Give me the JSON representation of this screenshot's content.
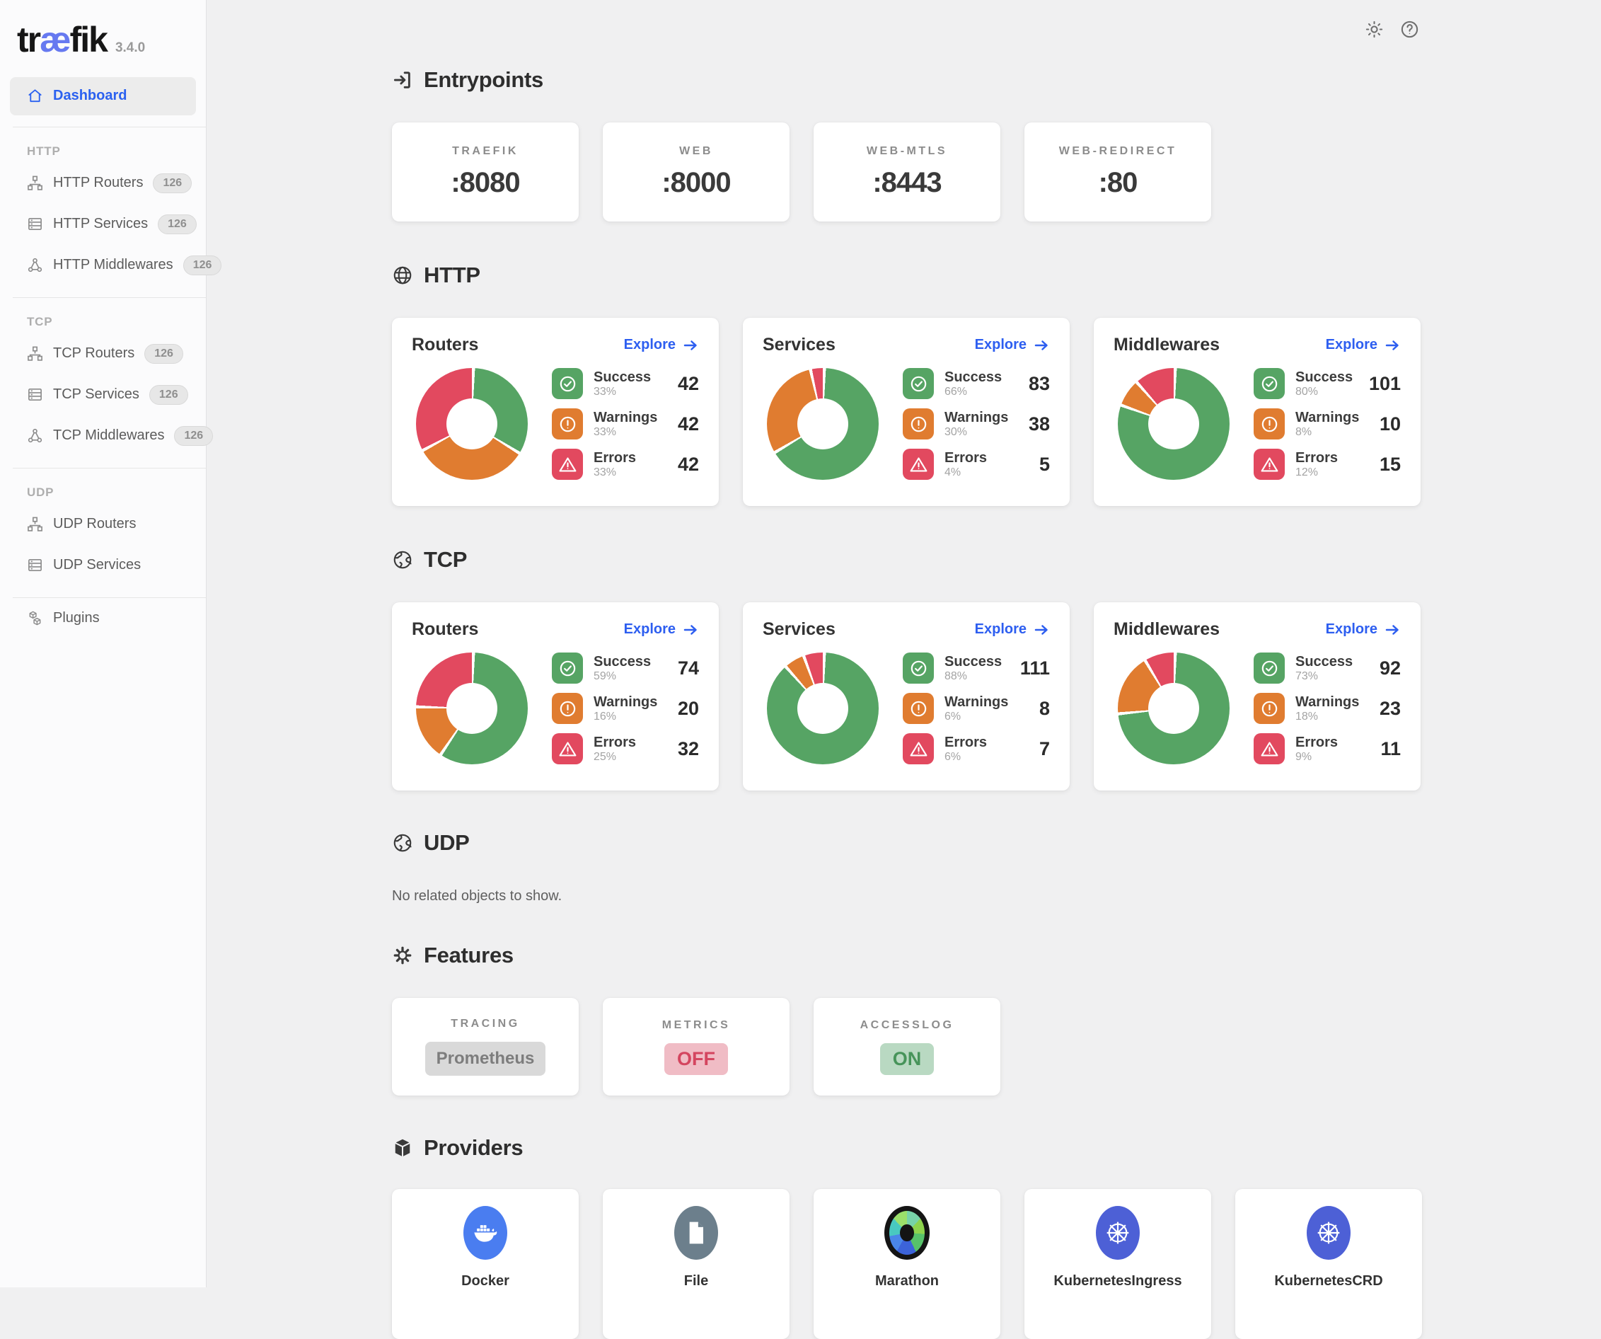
{
  "colors": {
    "success": "#56a464",
    "warning": "#e07c30",
    "error": "#e2495f",
    "accent": "#2d5ef0",
    "logo_accent": "#6679f0"
  },
  "app": {
    "brand_pre": "tr",
    "brand_ae": "æ",
    "brand_post": "fik",
    "version": "3.4.0"
  },
  "topbar": {
    "icons": [
      {
        "name": "theme-sun"
      },
      {
        "name": "help-circle"
      }
    ]
  },
  "sidebar": {
    "main_item": {
      "label": "Dashboard",
      "icon": "home"
    },
    "sections": [
      {
        "title": "HTTP",
        "items": [
          {
            "label": "HTTP Routers",
            "icon": "routers",
            "badge": "126"
          },
          {
            "label": "HTTP Services",
            "icon": "services",
            "badge": "126"
          },
          {
            "label": "HTTP Middlewares",
            "icon": "middlewares",
            "badge": "126"
          }
        ]
      },
      {
        "title": "TCP",
        "items": [
          {
            "label": "TCP Routers",
            "icon": "routers",
            "badge": "126"
          },
          {
            "label": "TCP Services",
            "icon": "services",
            "badge": "126"
          },
          {
            "label": "TCP Middlewares",
            "icon": "middlewares",
            "badge": "126"
          }
        ]
      },
      {
        "title": "UDP",
        "items": [
          {
            "label": "UDP Routers",
            "icon": "routers"
          },
          {
            "label": "UDP Services",
            "icon": "services"
          }
        ]
      }
    ],
    "bottom_items": [
      {
        "label": "Plugins",
        "icon": "plugins"
      }
    ]
  },
  "entrypoints": {
    "title": "Entrypoints",
    "icon": "login",
    "cards": [
      {
        "name": "TRAEFIK",
        "port": ":8080"
      },
      {
        "name": "WEB",
        "port": ":8000"
      },
      {
        "name": "WEB-MTLS",
        "port": ":8443"
      },
      {
        "name": "WEB-REDIRECT",
        "port": ":80"
      }
    ]
  },
  "protocol_sections": [
    {
      "title": "HTTP",
      "icon": "globe-wire",
      "cards": [
        {
          "title": "Routers",
          "explore_label": "Explore",
          "stats": [
            {
              "type": "success",
              "label": "Success",
              "percent": "33%",
              "pct": 33,
              "value": "42"
            },
            {
              "type": "warning",
              "label": "Warnings",
              "percent": "33%",
              "pct": 33,
              "value": "42"
            },
            {
              "type": "error",
              "label": "Errors",
              "percent": "33%",
              "pct": 33,
              "value": "42"
            }
          ]
        },
        {
          "title": "Services",
          "explore_label": "Explore",
          "stats": [
            {
              "type": "success",
              "label": "Success",
              "percent": "66%",
              "pct": 66,
              "value": "83"
            },
            {
              "type": "warning",
              "label": "Warnings",
              "percent": "30%",
              "pct": 30,
              "value": "38"
            },
            {
              "type": "error",
              "label": "Errors",
              "percent": "4%",
              "pct": 4,
              "value": "5"
            }
          ]
        },
        {
          "title": "Middlewares",
          "explore_label": "Explore",
          "stats": [
            {
              "type": "success",
              "label": "Success",
              "percent": "80%",
              "pct": 80,
              "value": "101"
            },
            {
              "type": "warning",
              "label": "Warnings",
              "percent": "8%",
              "pct": 8,
              "value": "10"
            },
            {
              "type": "error",
              "label": "Errors",
              "percent": "12%",
              "pct": 12,
              "value": "15"
            }
          ]
        }
      ]
    },
    {
      "title": "TCP",
      "icon": "globe-earth",
      "cards": [
        {
          "title": "Routers",
          "explore_label": "Explore",
          "stats": [
            {
              "type": "success",
              "label": "Success",
              "percent": "59%",
              "pct": 59,
              "value": "74"
            },
            {
              "type": "warning",
              "label": "Warnings",
              "percent": "16%",
              "pct": 16,
              "value": "20"
            },
            {
              "type": "error",
              "label": "Errors",
              "percent": "25%",
              "pct": 25,
              "value": "32"
            }
          ]
        },
        {
          "title": "Services",
          "explore_label": "Explore",
          "stats": [
            {
              "type": "success",
              "label": "Success",
              "percent": "88%",
              "pct": 88,
              "value": "111"
            },
            {
              "type": "warning",
              "label": "Warnings",
              "percent": "6%",
              "pct": 6,
              "value": "8"
            },
            {
              "type": "error",
              "label": "Errors",
              "percent": "6%",
              "pct": 6,
              "value": "7"
            }
          ]
        },
        {
          "title": "Middlewares",
          "explore_label": "Explore",
          "stats": [
            {
              "type": "success",
              "label": "Success",
              "percent": "73%",
              "pct": 73,
              "value": "92"
            },
            {
              "type": "warning",
              "label": "Warnings",
              "percent": "18%",
              "pct": 18,
              "value": "23"
            },
            {
              "type": "error",
              "label": "Errors",
              "percent": "9%",
              "pct": 9,
              "value": "11"
            }
          ]
        }
      ]
    }
  ],
  "udp_section": {
    "title": "UDP",
    "icon": "globe-earth",
    "empty_text": "No related objects to show."
  },
  "features": {
    "title": "Features",
    "icon": "gear",
    "cards": [
      {
        "name": "TRACING",
        "value": "Prometheus",
        "style": "neutral"
      },
      {
        "name": "METRICS",
        "value": "OFF",
        "style": "off"
      },
      {
        "name": "ACCESSLOG",
        "value": "ON",
        "style": "on"
      }
    ]
  },
  "providers": {
    "title": "Providers",
    "icon": "package",
    "cards": [
      {
        "name": "Docker",
        "icon": "docker"
      },
      {
        "name": "File",
        "icon": "file"
      },
      {
        "name": "Marathon",
        "icon": "marathon"
      },
      {
        "name": "KubernetesIngress",
        "icon": "kubernetes"
      },
      {
        "name": "KubernetesCRD",
        "icon": "kubernetes"
      }
    ]
  },
  "chart_data": [
    {
      "type": "pie",
      "title": "HTTP Routers",
      "labels": [
        "Success",
        "Warnings",
        "Errors"
      ],
      "values": [
        33,
        33,
        33
      ],
      "counts": [
        42,
        42,
        42
      ],
      "colors": [
        "#56a464",
        "#e07c30",
        "#e2495f"
      ]
    },
    {
      "type": "pie",
      "title": "HTTP Services",
      "labels": [
        "Success",
        "Warnings",
        "Errors"
      ],
      "values": [
        66,
        30,
        4
      ],
      "counts": [
        83,
        38,
        5
      ],
      "colors": [
        "#56a464",
        "#e07c30",
        "#e2495f"
      ]
    },
    {
      "type": "pie",
      "title": "HTTP Middlewares",
      "labels": [
        "Success",
        "Warnings",
        "Errors"
      ],
      "values": [
        80,
        8,
        12
      ],
      "counts": [
        101,
        10,
        15
      ],
      "colors": [
        "#56a464",
        "#e07c30",
        "#e2495f"
      ]
    },
    {
      "type": "pie",
      "title": "TCP Routers",
      "labels": [
        "Success",
        "Warnings",
        "Errors"
      ],
      "values": [
        59,
        16,
        25
      ],
      "counts": [
        74,
        20,
        32
      ],
      "colors": [
        "#56a464",
        "#e07c30",
        "#e2495f"
      ]
    },
    {
      "type": "pie",
      "title": "TCP Services",
      "labels": [
        "Success",
        "Warnings",
        "Errors"
      ],
      "values": [
        88,
        6,
        6
      ],
      "counts": [
        111,
        8,
        7
      ],
      "colors": [
        "#56a464",
        "#e07c30",
        "#e2495f"
      ]
    },
    {
      "type": "pie",
      "title": "TCP Middlewares",
      "labels": [
        "Success",
        "Warnings",
        "Errors"
      ],
      "values": [
        73,
        18,
        9
      ],
      "counts": [
        92,
        23,
        11
      ],
      "colors": [
        "#56a464",
        "#e07c30",
        "#e2495f"
      ]
    }
  ]
}
